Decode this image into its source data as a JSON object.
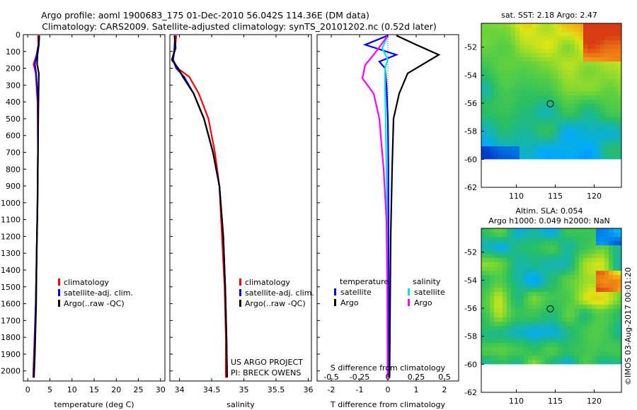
{
  "header": {
    "line1": "Argo profile: aoml 1900683_175 01-Dec-2010 56.042S 114.36E (DM data)",
    "line2": "Climatology: CARS2009. Satellite-adjusted climatology: synTS_20101202.nc (0.52d later)"
  },
  "credit": {
    "project": "US ARGO PROJECT",
    "pi": "PI: BRECK OWENS",
    "stamp": "©IMOS 03-Aug-2017 00:01:20"
  },
  "colors": {
    "climatology": "#ff0000",
    "satellite": "#0000ff",
    "argo": "#000000",
    "satellite_salinity": "#00e5e5",
    "argo_salinity": "#ff00ff"
  },
  "chart_data": [
    {
      "type": "line",
      "name": "temperature-profile",
      "xlabel": "temperature (deg C)",
      "ylabel": "",
      "xlim": [
        -1,
        31
      ],
      "ylim": [
        2060,
        0
      ],
      "xticks": [
        0,
        5,
        10,
        15,
        20,
        25,
        30
      ],
      "yticks": [
        0,
        100,
        200,
        300,
        400,
        500,
        600,
        700,
        800,
        900,
        1000,
        1100,
        1200,
        1300,
        1400,
        1500,
        1600,
        1700,
        1800,
        1900,
        2000
      ],
      "legend": [
        "climatology",
        "satellite-adj. clim.",
        "Argo(..raw -QC)"
      ],
      "legend_position": "lower-center",
      "series": [
        {
          "name": "climatology",
          "color": "#ff0000",
          "points": [
            [
              2.3,
              5
            ],
            [
              2.4,
              60
            ],
            [
              2.0,
              120
            ],
            [
              1.3,
              175
            ],
            [
              1.8,
              230
            ],
            [
              2.2,
              400
            ],
            [
              2.3,
              700
            ],
            [
              2.2,
              1000
            ],
            [
              2.0,
              1300
            ],
            [
              1.8,
              1600
            ],
            [
              1.4,
              1900
            ],
            [
              1.2,
              2040
            ]
          ]
        },
        {
          "name": "satellite-adj. clim.",
          "color": "#0000ff",
          "points": [
            [
              2.6,
              5
            ],
            [
              2.4,
              60
            ],
            [
              2.0,
              120
            ],
            [
              1.6,
              175
            ],
            [
              1.9,
              230
            ],
            [
              2.3,
              400
            ],
            [
              2.3,
              700
            ],
            [
              2.2,
              1000
            ],
            [
              2.0,
              1300
            ],
            [
              1.8,
              1600
            ],
            [
              1.5,
              1900
            ],
            [
              1.3,
              2040
            ]
          ]
        },
        {
          "name": "Argo(..raw -QC)",
          "color": "#000000",
          "points": [
            [
              2.6,
              5
            ],
            [
              2.5,
              60
            ],
            [
              2.2,
              120
            ],
            [
              2.1,
              175
            ],
            [
              2.5,
              230
            ],
            [
              2.4,
              400
            ],
            [
              2.3,
              700
            ],
            [
              2.2,
              1000
            ],
            [
              2.0,
              1300
            ],
            [
              1.9,
              1600
            ],
            [
              1.6,
              1900
            ],
            [
              1.4,
              2040
            ]
          ]
        }
      ]
    },
    {
      "type": "line",
      "name": "salinity-profile",
      "xlabel": "salinity",
      "ylabel": "",
      "xlim": [
        33.85,
        36.05
      ],
      "ylim": [
        2060,
        0
      ],
      "xticks": [
        34,
        34.5,
        35,
        35.5,
        36
      ],
      "legend": [
        "climatology",
        "satellite-adj. clim.",
        "Argo(..raw -QC)"
      ],
      "legend_position": "lower-center",
      "series": [
        {
          "name": "climatology",
          "color": "#ff0000",
          "points": [
            [
              33.95,
              5
            ],
            [
              33.93,
              80
            ],
            [
              33.9,
              150
            ],
            [
              33.97,
              200
            ],
            [
              34.15,
              250
            ],
            [
              34.3,
              350
            ],
            [
              34.45,
              500
            ],
            [
              34.55,
              700
            ],
            [
              34.62,
              900
            ],
            [
              34.66,
              1200
            ],
            [
              34.7,
              1500
            ],
            [
              34.72,
              1800
            ],
            [
              34.72,
              2040
            ]
          ]
        },
        {
          "name": "satellite-adj. clim.",
          "color": "#0000ff",
          "points": [
            [
              33.93,
              5
            ],
            [
              33.92,
              80
            ],
            [
              33.9,
              150
            ],
            [
              33.95,
              200
            ],
            [
              34.07,
              250
            ],
            [
              34.22,
              350
            ],
            [
              34.38,
              500
            ],
            [
              34.52,
              700
            ],
            [
              34.62,
              900
            ],
            [
              34.68,
              1200
            ],
            [
              34.71,
              1500
            ],
            [
              34.73,
              1800
            ],
            [
              34.74,
              2040
            ]
          ]
        },
        {
          "name": "Argo(..raw -QC)",
          "color": "#000000",
          "points": [
            [
              33.92,
              5
            ],
            [
              33.94,
              80
            ],
            [
              33.88,
              150
            ],
            [
              33.98,
              200
            ],
            [
              34.05,
              250
            ],
            [
              34.22,
              350
            ],
            [
              34.38,
              500
            ],
            [
              34.52,
              700
            ],
            [
              34.62,
              900
            ],
            [
              34.68,
              1200
            ],
            [
              34.71,
              1500
            ],
            [
              34.73,
              1800
            ],
            [
              34.74,
              2040
            ]
          ]
        }
      ]
    },
    {
      "type": "line",
      "name": "difference-profile",
      "xlabel": "T difference from climatology",
      "x2label": "S difference from climatology",
      "xlim": [
        -2.5,
        2.5
      ],
      "ylim": [
        2060,
        0
      ],
      "xticks": [
        -2,
        -1,
        0,
        1,
        2
      ],
      "x2ticks": [
        "-0.5",
        "-0.25",
        "0",
        "0.25",
        "0.5"
      ],
      "legend_groups": [
        "temperature",
        "salinity"
      ],
      "legend": [
        "satellite",
        "Argo",
        "satellite",
        "Argo"
      ],
      "legend_position": "lower-center",
      "series": [
        {
          "name": "satellite",
          "group": "temperature",
          "color": "#0000ff",
          "points": [
            [
              0.0,
              5
            ],
            [
              -0.8,
              60
            ],
            [
              0.3,
              120
            ],
            [
              -0.3,
              160
            ],
            [
              -0.1,
              200
            ],
            [
              -0.05,
              300
            ],
            [
              0.0,
              500
            ],
            [
              0.02,
              800
            ],
            [
              0.02,
              1200
            ],
            [
              0.03,
              1600
            ],
            [
              0.03,
              2040
            ]
          ]
        },
        {
          "name": "Argo",
          "group": "temperature",
          "color": "#000000",
          "points": [
            [
              0.3,
              5
            ],
            [
              1.0,
              60
            ],
            [
              1.8,
              120
            ],
            [
              1.2,
              180
            ],
            [
              0.7,
              230
            ],
            [
              0.4,
              350
            ],
            [
              0.2,
              500
            ],
            [
              0.15,
              800
            ],
            [
              0.1,
              1200
            ],
            [
              0.08,
              1600
            ],
            [
              0.06,
              2040
            ]
          ]
        },
        {
          "name": "satellite",
          "group": "salinity",
          "color": "#00e5e5",
          "points": [
            [
              0.0,
              5
            ],
            [
              -0.2,
              80
            ],
            [
              0.0,
              150
            ],
            [
              -0.1,
              200
            ],
            [
              -0.1,
              300
            ],
            [
              -0.08,
              500
            ],
            [
              -0.05,
              800
            ],
            [
              -0.03,
              1100
            ],
            [
              -0.02,
              1500
            ],
            [
              -0.01,
              2040
            ]
          ]
        },
        {
          "name": "Argo",
          "group": "salinity",
          "color": "#ff00ff",
          "points": [
            [
              0.0,
              5
            ],
            [
              -0.5,
              120
            ],
            [
              -0.8,
              180
            ],
            [
              -0.9,
              260
            ],
            [
              -0.5,
              350
            ],
            [
              -0.3,
              500
            ],
            [
              -0.15,
              800
            ],
            [
              -0.05,
              1100
            ],
            [
              -0.02,
              1500
            ],
            [
              -0.01,
              2040
            ]
          ]
        }
      ]
    },
    {
      "type": "heatmap",
      "name": "sst-map",
      "title": "sat. SST: 2.18 Argo: 2.47",
      "xlim": [
        105.5,
        123.5
      ],
      "ylim": [
        -62,
        -50.3
      ],
      "data_ylim": [
        -60,
        -50.3
      ],
      "xticks": [
        110,
        115,
        120
      ],
      "yticks": [
        -52,
        -54,
        -56,
        -58,
        -60,
        -62
      ],
      "marker": {
        "lon": 114.36,
        "lat": -56.04
      }
    },
    {
      "type": "heatmap",
      "name": "sla-map",
      "title_line1": "Altim. SLA: 0.054",
      "title_line2": "Argo h1000: 0.049 h2000: NaN",
      "xlim": [
        105.5,
        123.5
      ],
      "ylim": [
        -62,
        -50.3
      ],
      "data_ylim": [
        -60,
        -50.3
      ],
      "xticks": [
        110,
        115,
        120
      ],
      "yticks": [
        -52,
        -54,
        -56,
        -58,
        -60,
        -62
      ],
      "marker": {
        "lon": 114.36,
        "lat": -56.04
      }
    }
  ]
}
